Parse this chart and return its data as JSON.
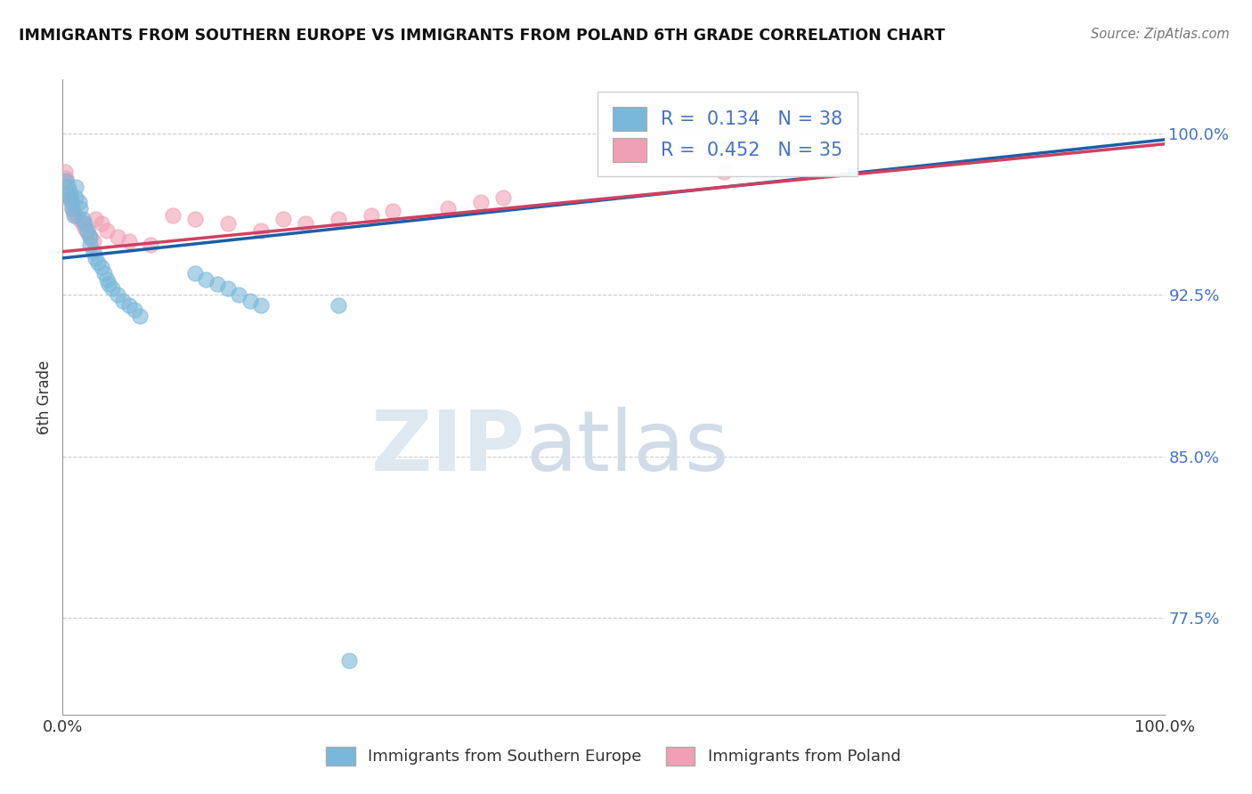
{
  "title": "IMMIGRANTS FROM SOUTHERN EUROPE VS IMMIGRANTS FROM POLAND 6TH GRADE CORRELATION CHART",
  "source": "Source: ZipAtlas.com",
  "ylabel": "6th Grade",
  "xlim": [
    0.0,
    1.0
  ],
  "ylim": [
    0.73,
    1.025
  ],
  "yticks": [
    0.775,
    0.85,
    0.925,
    1.0
  ],
  "ytick_labels": [
    "77.5%",
    "85.0%",
    "92.5%",
    "100.0%"
  ],
  "xtick_labels": [
    "0.0%",
    "100.0%"
  ],
  "xticks": [
    0.0,
    1.0
  ],
  "r1": 0.134,
  "n1": 38,
  "r2": 0.452,
  "n2": 35,
  "color_blue": "#7ab8d9",
  "color_pink": "#f0a0b5",
  "line_blue": "#1a5fa8",
  "line_pink": "#d04060",
  "text_blue": "#4472c4",
  "watermark_color": "#dde8f0",
  "blue_scatter_x": [
    0.003,
    0.005,
    0.006,
    0.007,
    0.008,
    0.009,
    0.01,
    0.012,
    0.012,
    0.015,
    0.016,
    0.018,
    0.02,
    0.022,
    0.025,
    0.025,
    0.028,
    0.03,
    0.032,
    0.035,
    0.038,
    0.04,
    0.042,
    0.045,
    0.05,
    0.055,
    0.06,
    0.065,
    0.07,
    0.12,
    0.13,
    0.14,
    0.15,
    0.16,
    0.17,
    0.18,
    0.25,
    0.26
  ],
  "blue_scatter_y": [
    0.978,
    0.975,
    0.972,
    0.97,
    0.968,
    0.965,
    0.962,
    0.975,
    0.97,
    0.968,
    0.965,
    0.96,
    0.958,
    0.955,
    0.952,
    0.948,
    0.945,
    0.942,
    0.94,
    0.938,
    0.935,
    0.932,
    0.93,
    0.928,
    0.925,
    0.922,
    0.92,
    0.918,
    0.915,
    0.935,
    0.932,
    0.93,
    0.928,
    0.925,
    0.922,
    0.92,
    0.92,
    0.755
  ],
  "pink_scatter_x": [
    0.002,
    0.003,
    0.004,
    0.005,
    0.006,
    0.007,
    0.008,
    0.009,
    0.01,
    0.012,
    0.015,
    0.018,
    0.02,
    0.022,
    0.025,
    0.028,
    0.03,
    0.035,
    0.04,
    0.05,
    0.06,
    0.08,
    0.1,
    0.12,
    0.15,
    0.18,
    0.2,
    0.22,
    0.25,
    0.28,
    0.3,
    0.35,
    0.38,
    0.4,
    0.6
  ],
  "pink_scatter_y": [
    0.982,
    0.979,
    0.977,
    0.975,
    0.973,
    0.97,
    0.968,
    0.965,
    0.963,
    0.962,
    0.96,
    0.958,
    0.956,
    0.954,
    0.952,
    0.95,
    0.96,
    0.958,
    0.955,
    0.952,
    0.95,
    0.948,
    0.962,
    0.96,
    0.958,
    0.955,
    0.96,
    0.958,
    0.96,
    0.962,
    0.964,
    0.965,
    0.968,
    0.97,
    0.982
  ],
  "blue_line_x0": 0.0,
  "blue_line_x1": 1.0,
  "blue_line_y0": 0.942,
  "blue_line_y1": 0.997,
  "pink_line_x0": 0.0,
  "pink_line_x1": 1.0,
  "pink_line_y0": 0.945,
  "pink_line_y1": 0.995
}
